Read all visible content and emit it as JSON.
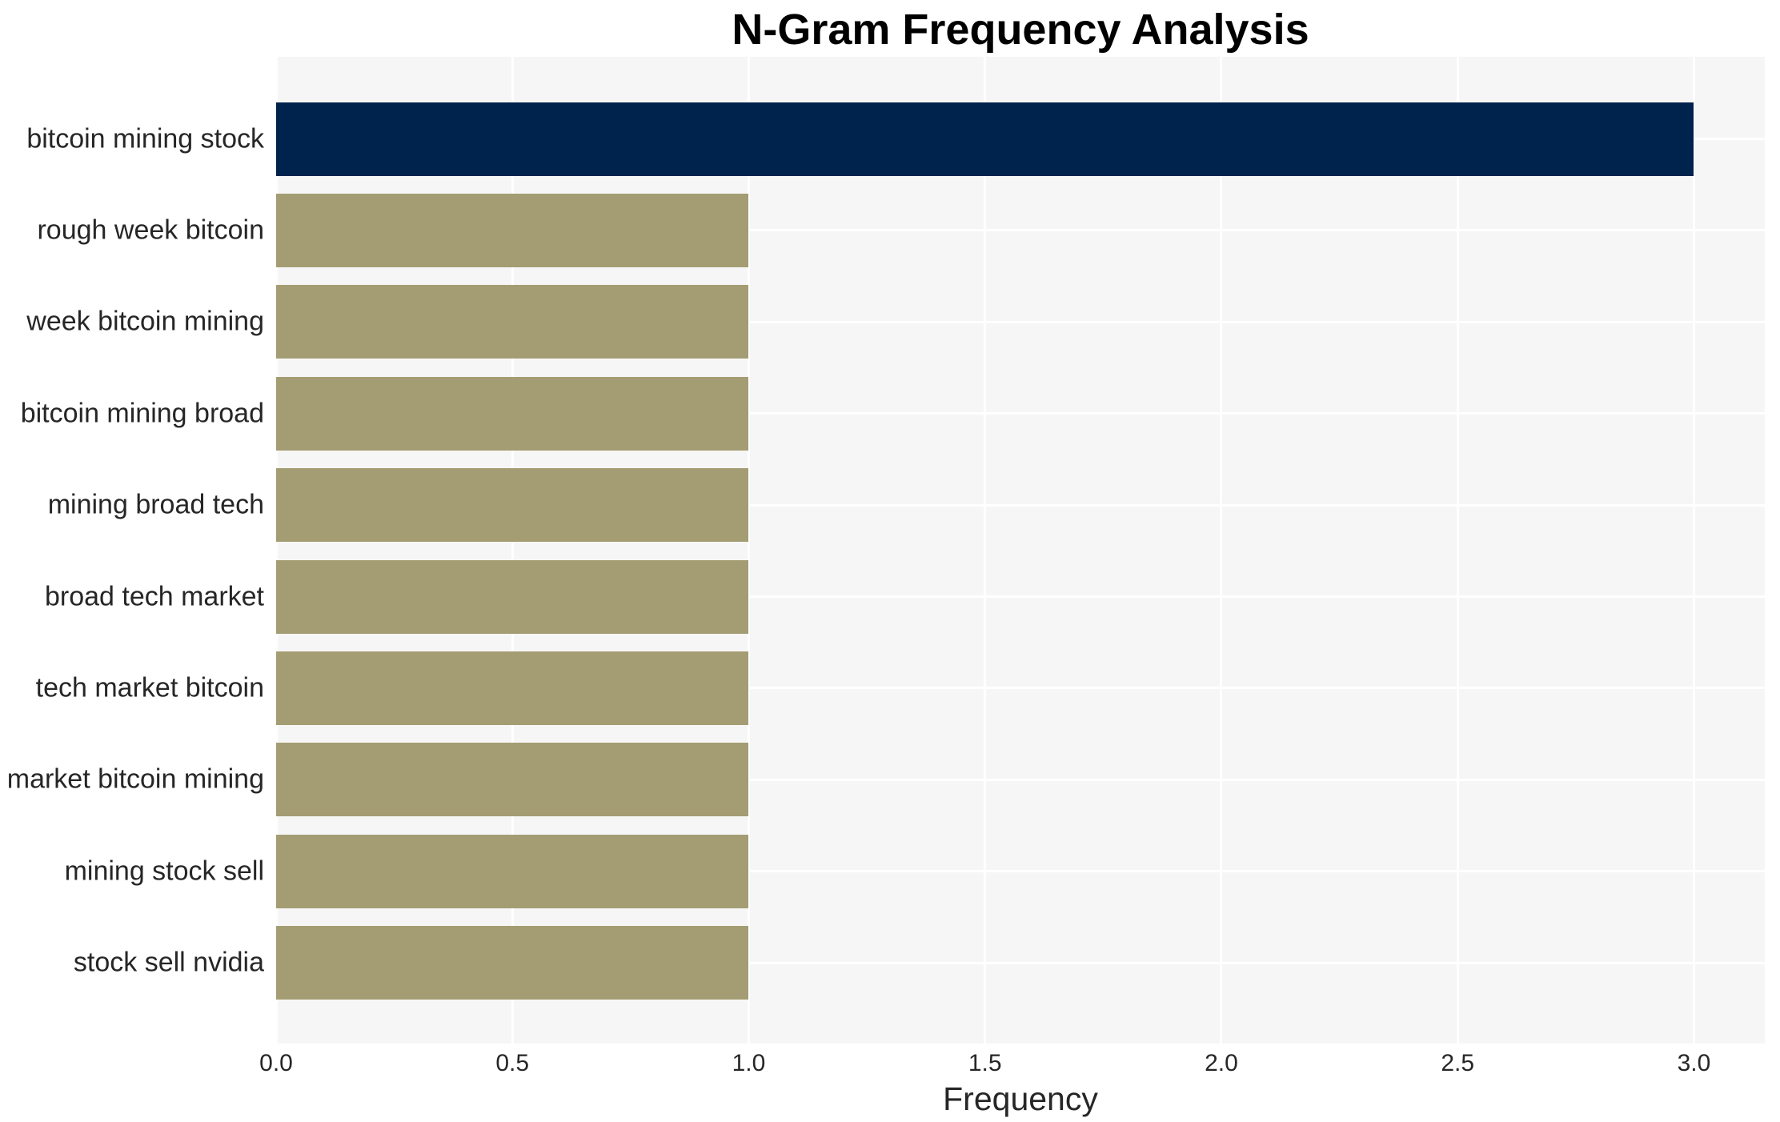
{
  "chart_data": {
    "type": "bar",
    "orientation": "horizontal",
    "title": "N-Gram Frequency Analysis",
    "xlabel": "Frequency",
    "ylabel": "",
    "categories": [
      "bitcoin mining stock",
      "rough week bitcoin",
      "week bitcoin mining",
      "bitcoin mining broad",
      "mining broad tech",
      "broad tech market",
      "tech market bitcoin",
      "market bitcoin mining",
      "mining stock sell",
      "stock sell nvidia"
    ],
    "values": [
      3,
      1,
      1,
      1,
      1,
      1,
      1,
      1,
      1,
      1
    ],
    "bar_colors": [
      "#00234d",
      "#a49d73",
      "#a49d73",
      "#a49d73",
      "#a49d73",
      "#a49d73",
      "#a49d73",
      "#a49d73",
      "#a49d73",
      "#a49d73"
    ],
    "xticks": [
      0.0,
      0.5,
      1.0,
      1.5,
      2.0,
      2.5,
      3.0
    ],
    "xtick_labels": [
      "0.0",
      "0.5",
      "1.0",
      "1.5",
      "2.0",
      "2.5",
      "3.0"
    ],
    "xlim": [
      0,
      3.15
    ],
    "grid": true,
    "legend": null,
    "colors": {
      "highlight_bar": "#00234d",
      "default_bar": "#a49d73",
      "plot_background": "#f7f6f6",
      "grid_line": "#ffffff",
      "tick_text": "#262626",
      "title_text": "#000000"
    }
  }
}
